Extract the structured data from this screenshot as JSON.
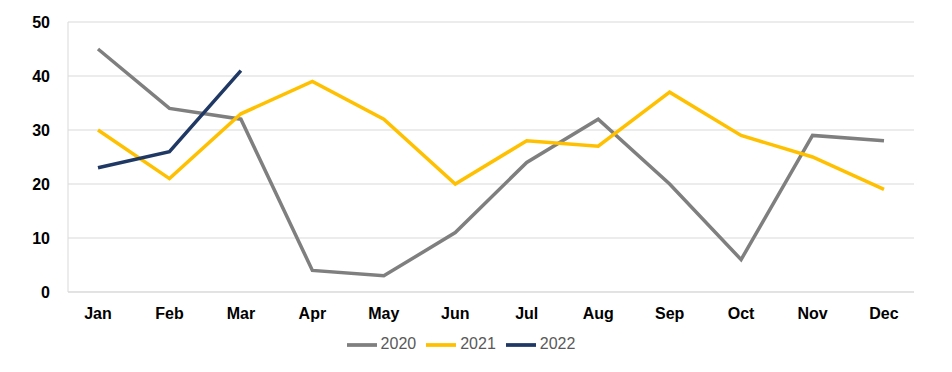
{
  "chart_data": {
    "type": "line",
    "categories": [
      "Jan",
      "Feb",
      "Mar",
      "Apr",
      "May",
      "Jun",
      "Jul",
      "Aug",
      "Sep",
      "Oct",
      "Nov",
      "Dec"
    ],
    "series": [
      {
        "name": "2020",
        "color": "#7f7f7f",
        "values": [
          45,
          34,
          32,
          4,
          3,
          11,
          24,
          32,
          20,
          6,
          29,
          28
        ]
      },
      {
        "name": "2021",
        "color": "#ffc000",
        "values": [
          30,
          21,
          33,
          39,
          32,
          20,
          28,
          27,
          37,
          29,
          25,
          19
        ]
      },
      {
        "name": "2022",
        "color": "#1f3864",
        "values": [
          23,
          26,
          41,
          null,
          null,
          null,
          null,
          null,
          null,
          null,
          null,
          null
        ]
      }
    ],
    "ylim": [
      0,
      50
    ],
    "yticks": [
      0,
      10,
      20,
      30,
      40,
      50
    ],
    "grid": true,
    "legend": "bottom"
  }
}
